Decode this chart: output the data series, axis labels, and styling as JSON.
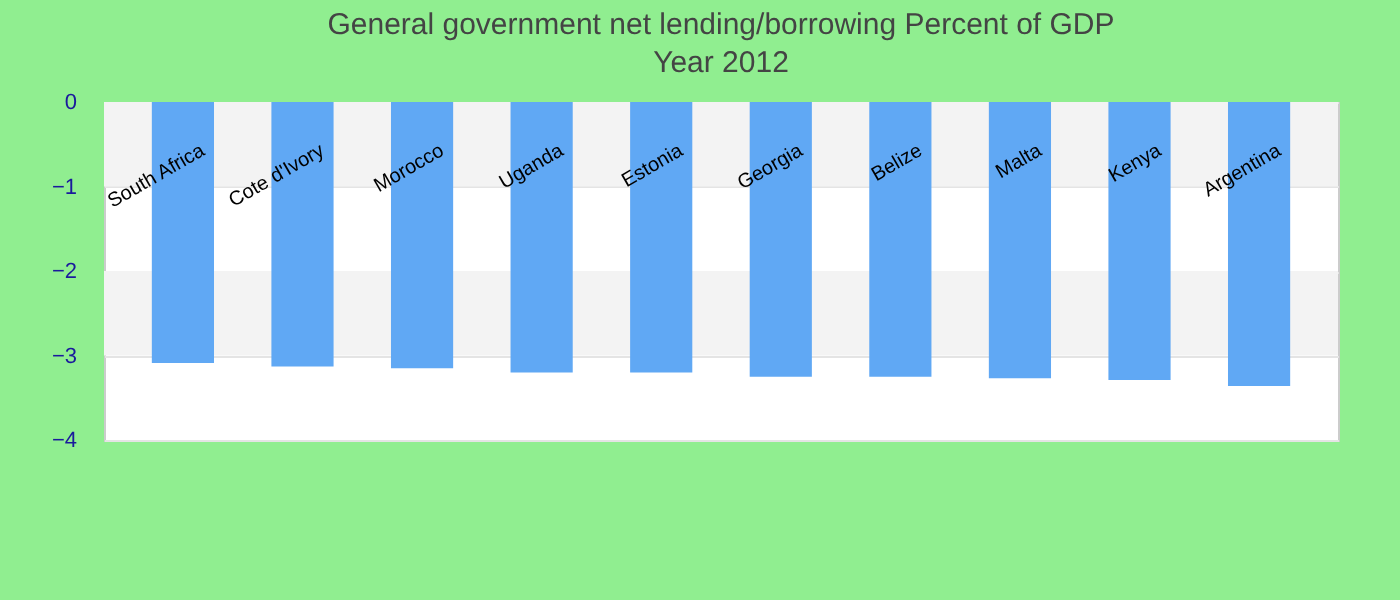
{
  "chart_data": {
    "type": "bar",
    "title": "General government net lending/borrowing  Percent of GDP",
    "subtitle": "Year 2012",
    "categories": [
      "South Africa",
      "Cote d'Ivory",
      "Morocco",
      "Uganda",
      "Estonia",
      "Georgia",
      "Belize",
      "Malta",
      "Kenya",
      "Argentina"
    ],
    "values": [
      -3.09,
      -3.13,
      -3.15,
      -3.2,
      -3.2,
      -3.25,
      -3.25,
      -3.27,
      -3.29,
      -3.36
    ],
    "color": "#60a8f4",
    "ylim": [
      -4,
      0
    ],
    "yticks": [
      -4,
      -3,
      -2,
      -1,
      0
    ],
    "grid": true
  }
}
